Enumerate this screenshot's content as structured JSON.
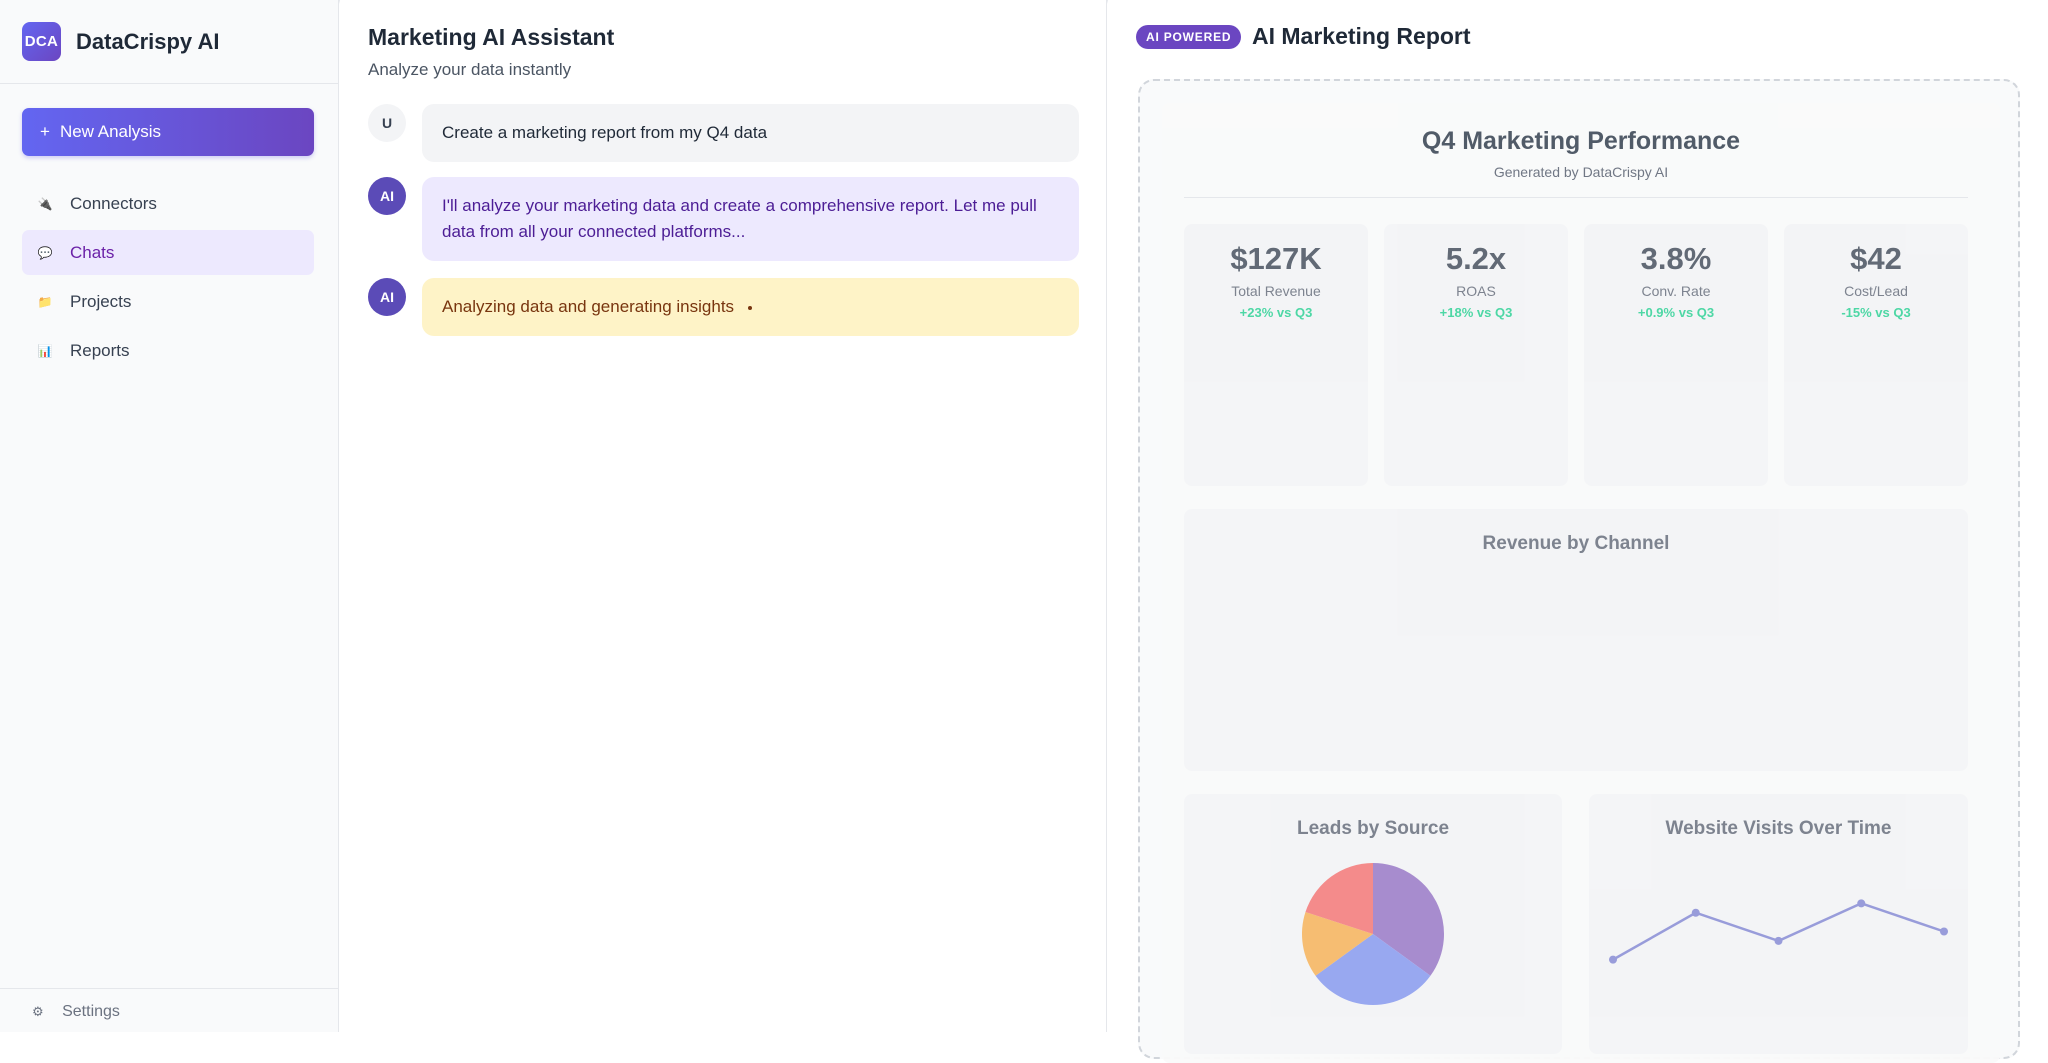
{
  "sidebar": {
    "logo": "DCA",
    "brand": "DataCrispy AI",
    "new_analysis": "New Analysis",
    "items": [
      {
        "label": "Connectors",
        "icon": "plug-icon",
        "glyph": "🔌",
        "active": false
      },
      {
        "label": "Chats",
        "icon": "chat-bubble-icon",
        "glyph": "💬",
        "active": true
      },
      {
        "label": "Projects",
        "icon": "folder-icon",
        "glyph": "📁",
        "active": false
      },
      {
        "label": "Reports",
        "icon": "bar-chart-icon",
        "glyph": "📊",
        "active": false
      }
    ],
    "footer_label": "Settings"
  },
  "chat": {
    "title": "Marketing AI Assistant",
    "subtitle": "Analyze your data instantly",
    "messages": [
      {
        "role": "user",
        "avatar": "U",
        "text": "Create a marketing report from my Q4 data"
      },
      {
        "role": "ai",
        "avatar": "AI",
        "text": "I'll analyze your marketing data and create a comprehensive report. Let me pull data from all your connected platforms..."
      },
      {
        "role": "ai",
        "avatar": "AI",
        "text": "Analyzing data and generating insights"
      }
    ]
  },
  "report": {
    "badge": "AI POWERED",
    "title": "AI Marketing Report",
    "doc_title": "Q4 Marketing Performance",
    "doc_subtitle": "Generated by DataCrispy AI",
    "kpis": [
      {
        "value": "$127K",
        "label": "Total Revenue",
        "delta": "+23% vs Q3"
      },
      {
        "value": "5.2x",
        "label": "ROAS",
        "delta": "+18% vs Q3"
      },
      {
        "value": "3.8%",
        "label": "Conv. Rate",
        "delta": "+0.9% vs Q3"
      },
      {
        "value": "$42",
        "label": "Cost/Lead",
        "delta": "-15% vs Q3"
      }
    ],
    "revenue_title": "Revenue by Channel",
    "leads_title": "Leads by Source",
    "visits_title": "Website Visits Over Time"
  },
  "chart_data": [
    {
      "type": "pie",
      "title": "Leads by Source",
      "values": [
        35,
        30,
        15,
        20
      ],
      "colors": [
        "#9b7cc9",
        "#8b9cf0",
        "#f6b55e",
        "#f47b7b"
      ]
    },
    {
      "type": "line",
      "title": "Website Visits Over Time",
      "values": [
        1,
        6,
        3,
        7,
        4
      ],
      "ylim": [
        0,
        8
      ],
      "color": "#8b8fd6"
    }
  ]
}
